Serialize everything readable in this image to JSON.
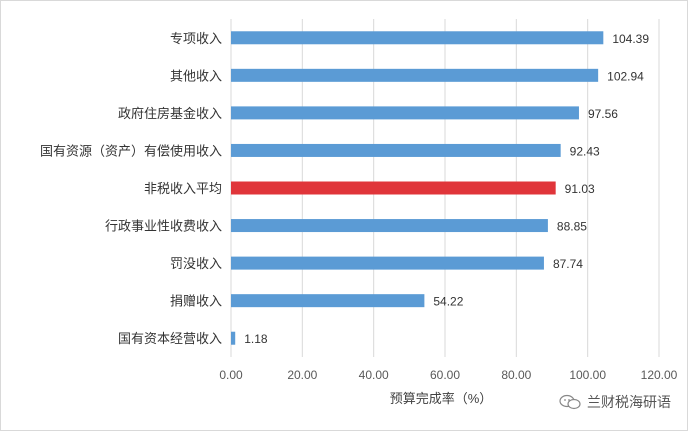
{
  "chart_data": {
    "type": "bar",
    "orientation": "horizontal",
    "categories": [
      "专项收入",
      "其他收入",
      "政府住房基金收入",
      "国有资源（资产）有偿使用收入",
      "非税收入平均",
      "行政事业性收费收入",
      "罚没收入",
      "捐赠收入",
      "国有资本经营收入"
    ],
    "values": [
      104.39,
      102.94,
      97.56,
      92.43,
      91.03,
      88.85,
      87.74,
      54.22,
      1.18
    ],
    "value_labels": [
      "104.39",
      "102.94",
      "97.56",
      "92.43",
      "91.03",
      "88.85",
      "87.74",
      "54.22",
      "1.18"
    ],
    "highlight_index": 4,
    "colors": {
      "bar": "#5b9bd5",
      "highlight": "#e0353a",
      "grid": "#d9d9d9"
    },
    "xlim": [
      0,
      120
    ],
    "xticks": [
      "0.00",
      "20.00",
      "40.00",
      "60.00",
      "80.00",
      "100.00",
      "120.00"
    ],
    "xlabel": "预算完成率（%）",
    "ylabel": "",
    "title": "",
    "grid": "vertical",
    "legend": "none"
  },
  "watermark": {
    "icon": "wechat-icon",
    "text": "兰财税海研语"
  }
}
